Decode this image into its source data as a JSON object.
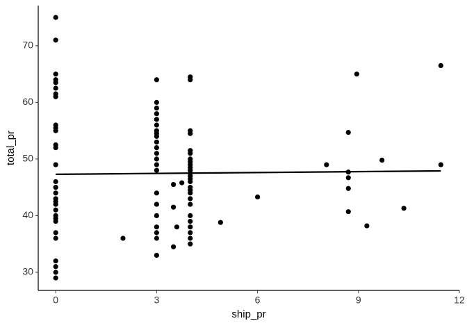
{
  "chart_data": {
    "type": "scatter",
    "x_label": "ship_pr",
    "y_label": "total_pr",
    "xlim": [
      -0.52,
      12.0
    ],
    "ylim": [
      26.8,
      77.1
    ],
    "xticks": [
      0,
      3,
      6,
      9,
      12
    ],
    "yticks": [
      30,
      40,
      50,
      60,
      70
    ],
    "grid": false,
    "color": "#000000",
    "x": [
      0,
      0,
      0,
      0,
      0,
      0,
      0,
      0,
      0,
      0,
      0,
      0,
      0,
      0,
      0,
      0,
      0,
      0,
      0,
      0,
      0,
      0,
      0,
      0,
      0,
      0,
      0,
      0,
      0,
      0,
      2,
      3,
      3,
      3,
      3,
      3,
      3,
      3,
      3,
      3,
      3,
      3,
      3,
      3,
      3,
      3,
      3,
      3,
      3,
      3,
      3,
      3,
      3,
      3.5,
      3.5,
      3.5,
      3.6,
      3.75,
      4,
      4,
      4,
      4,
      4,
      4,
      4,
      4,
      4,
      4,
      4,
      4,
      4,
      4,
      4,
      4,
      4,
      4,
      4,
      4,
      4,
      4,
      4,
      4,
      4,
      4,
      4.9,
      6,
      8.05,
      8.7,
      8.7,
      8.7,
      8.7,
      8.7,
      8.95,
      9.25,
      9.7,
      10.35,
      11.45,
      11.45
    ],
    "y": [
      75,
      71,
      65,
      64,
      63.5,
      62.5,
      61.5,
      61,
      56,
      55.5,
      55,
      52.5,
      52,
      49,
      46,
      45,
      44,
      43,
      42.5,
      42,
      41,
      40,
      39.5,
      39,
      37,
      36,
      32,
      31,
      30,
      29,
      36,
      64,
      60,
      59,
      58,
      57,
      56,
      55,
      54.5,
      54,
      53,
      52,
      51,
      50,
      49,
      48,
      44,
      42,
      40,
      38,
      37,
      36,
      33,
      45.5,
      41.5,
      34.5,
      38,
      45.8,
      64.5,
      64,
      55,
      54.5,
      51.5,
      51,
      50,
      49.5,
      49,
      48.5,
      48,
      47.5,
      47,
      46.5,
      46,
      45,
      44.5,
      44,
      43,
      42,
      40,
      39,
      38,
      37,
      36,
      35,
      38.8,
      43.3,
      49,
      54.7,
      47.7,
      46.7,
      44.8,
      40.7,
      65,
      38.2,
      49.8,
      41.3,
      66.5,
      49
    ],
    "trend": {
      "x": [
        0,
        11.45
      ],
      "y": [
        47.3,
        47.9
      ],
      "color": "#000000"
    }
  }
}
